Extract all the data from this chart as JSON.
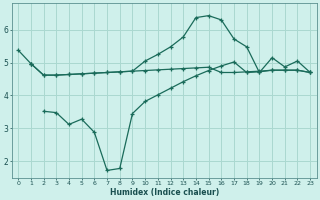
{
  "xlabel": "Humidex (Indice chaleur)",
  "bg_color": "#cff0eb",
  "grid_color": "#aad8d0",
  "line_color": "#1a6b5a",
  "xlim": [
    -0.5,
    23.5
  ],
  "ylim": [
    1.5,
    6.8
  ],
  "yticks": [
    2,
    3,
    4,
    5,
    6
  ],
  "xticks": [
    0,
    1,
    2,
    3,
    4,
    5,
    6,
    7,
    8,
    9,
    10,
    11,
    12,
    13,
    14,
    15,
    16,
    17,
    18,
    19,
    20,
    21,
    22,
    23
  ],
  "series": [
    {
      "x": [
        0,
        1
      ],
      "y": [
        5.38,
        4.97
      ]
    },
    {
      "x": [
        1,
        2,
        3,
        4,
        5,
        6,
        7,
        8,
        9,
        10,
        11,
        12,
        13,
        14,
        15,
        16,
        17,
        18,
        19,
        20,
        21,
        22,
        23
      ],
      "y": [
        4.97,
        4.62,
        4.62,
        4.64,
        4.66,
        4.68,
        4.7,
        4.72,
        4.74,
        4.76,
        4.78,
        4.8,
        4.82,
        4.84,
        4.86,
        4.7,
        4.7,
        4.72,
        4.74,
        4.77,
        4.77,
        4.77,
        4.7
      ]
    },
    {
      "x": [
        1,
        2,
        3,
        4,
        5,
        6,
        7,
        8,
        9,
        10,
        11,
        12,
        13,
        14,
        15,
        16,
        17,
        18,
        19,
        20,
        21,
        22,
        23
      ],
      "y": [
        4.97,
        4.62,
        4.62,
        4.64,
        4.66,
        4.68,
        4.7,
        4.72,
        4.74,
        5.05,
        5.25,
        5.48,
        5.78,
        6.37,
        6.43,
        6.3,
        5.72,
        5.48,
        4.7,
        5.15,
        4.87,
        5.05,
        4.7
      ]
    },
    {
      "x": [
        2,
        3,
        4,
        5,
        6,
        7,
        8,
        9,
        10,
        11,
        12,
        13,
        14,
        15,
        16,
        17,
        18,
        19,
        20,
        21,
        22,
        23
      ],
      "y": [
        3.52,
        3.48,
        3.12,
        3.28,
        2.88,
        1.72,
        1.78,
        3.45,
        3.82,
        4.02,
        4.22,
        4.42,
        4.6,
        4.76,
        4.9,
        5.02,
        4.7,
        4.72,
        4.77,
        4.77,
        4.77,
        4.7
      ]
    }
  ]
}
